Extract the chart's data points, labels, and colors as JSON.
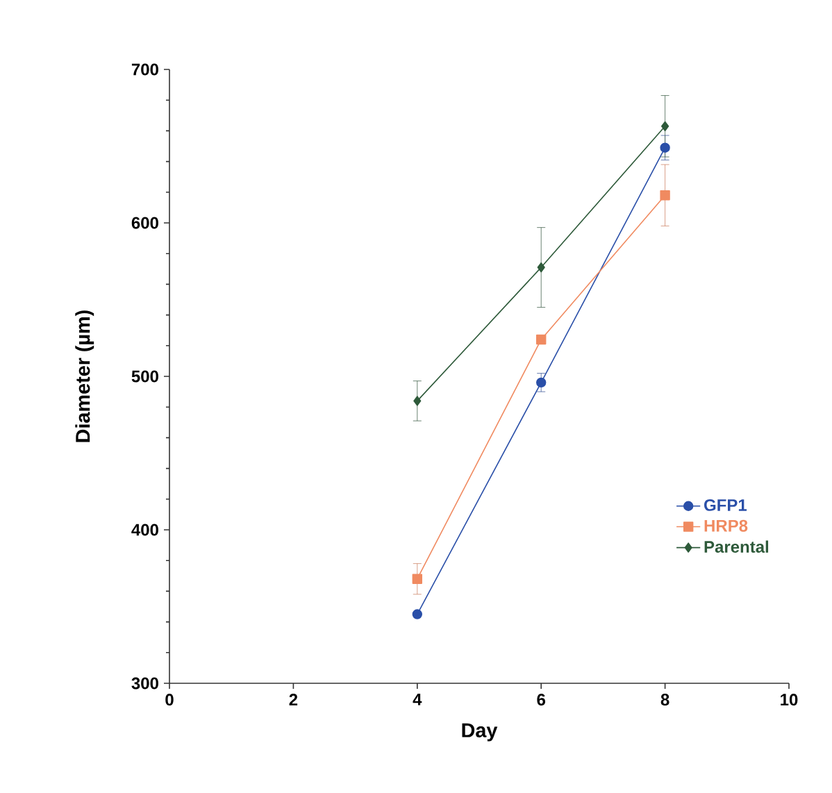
{
  "chart_data": {
    "type": "line",
    "xlabel": "Day",
    "ylabel": "Diameter (µm)",
    "x": [
      4,
      6,
      8
    ],
    "series": [
      {
        "name": "GFP1",
        "color": "#2a4fa8",
        "marker": "circle",
        "values": [
          345,
          496,
          649
        ],
        "errors": [
          null,
          6,
          8
        ]
      },
      {
        "name": "HRP8",
        "color": "#f08a60",
        "marker": "square",
        "values": [
          368,
          524,
          618
        ],
        "errors": [
          10,
          null,
          20
        ]
      },
      {
        "name": "Parental",
        "color": "#2e5a3a",
        "marker": "diamond",
        "values": [
          484,
          571,
          663
        ],
        "errors": [
          13,
          26,
          20
        ]
      }
    ],
    "xlim": [
      0,
      10
    ],
    "xticks": [
      0,
      2,
      4,
      6,
      8,
      10
    ],
    "ylim": [
      300,
      700
    ],
    "yticks": [
      300,
      400,
      500,
      600,
      700
    ],
    "grid": false,
    "legend": "bottom right"
  }
}
